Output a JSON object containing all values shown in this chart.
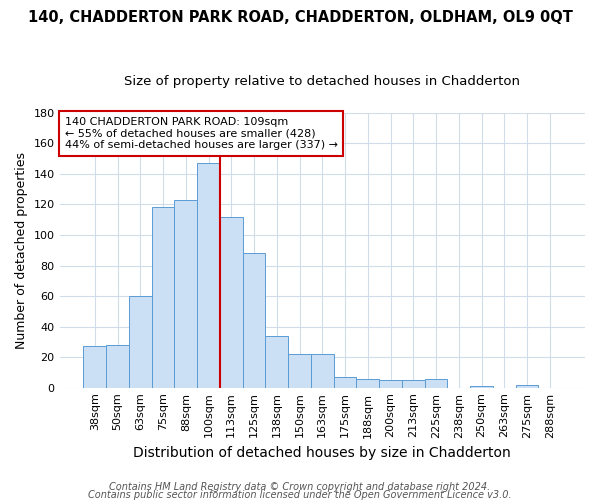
{
  "title": "140, CHADDERTON PARK ROAD, CHADDERTON, OLDHAM, OL9 0QT",
  "subtitle": "Size of property relative to detached houses in Chadderton",
  "xlabel": "Distribution of detached houses by size in Chadderton",
  "ylabel": "Number of detached properties",
  "categories": [
    "38sqm",
    "50sqm",
    "63sqm",
    "75sqm",
    "88sqm",
    "100sqm",
    "113sqm",
    "125sqm",
    "138sqm",
    "150sqm",
    "163sqm",
    "175sqm",
    "188sqm",
    "200sqm",
    "213sqm",
    "225sqm",
    "238sqm",
    "250sqm",
    "263sqm",
    "275sqm",
    "288sqm"
  ],
  "values": [
    27,
    28,
    60,
    118,
    123,
    147,
    112,
    88,
    34,
    22,
    22,
    7,
    6,
    5,
    5,
    6,
    0,
    1,
    0,
    2,
    0
  ],
  "bar_color": "#cce0f5",
  "bar_edge_color": "#5a9bd5",
  "vline_x_index": 5.5,
  "vline_color": "#cc0000",
  "annotation_text": "140 CHADDERTON PARK ROAD: 109sqm\n← 55% of detached houses are smaller (428)\n44% of semi-detached houses are larger (337) →",
  "annotation_box_color": "#ffffff",
  "annotation_box_edge_color": "#cc0000",
  "ylim": [
    0,
    180
  ],
  "yticks": [
    0,
    20,
    40,
    60,
    80,
    100,
    120,
    140,
    160,
    180
  ],
  "footer1": "Contains HM Land Registry data © Crown copyright and database right 2024.",
  "footer2": "Contains public sector information licensed under the Open Government Licence v3.0.",
  "background_color": "#ffffff",
  "grid_color": "#d0dce8",
  "title_fontsize": 10.5,
  "subtitle_fontsize": 9.5,
  "xlabel_fontsize": 10,
  "ylabel_fontsize": 9,
  "tick_fontsize": 8,
  "annotation_fontsize": 8,
  "footer_fontsize": 7
}
